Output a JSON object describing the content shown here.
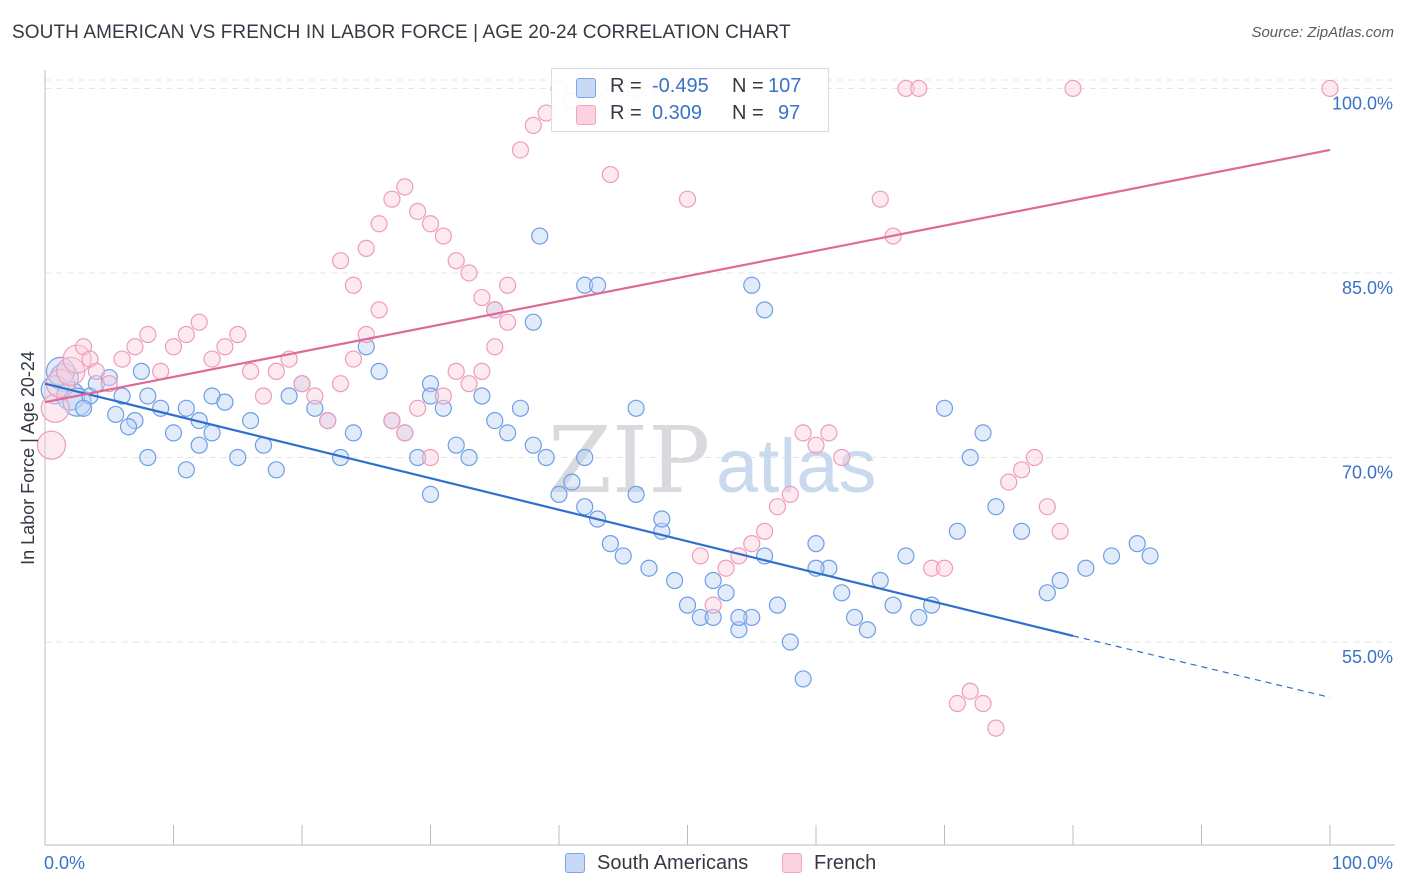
{
  "title": "SOUTH AMERICAN VS FRENCH IN LABOR FORCE | AGE 20-24 CORRELATION CHART",
  "source": "Source: ZipAtlas.com",
  "watermark": {
    "zip": "ZIP",
    "atlas": "atlas"
  },
  "legend_top": {
    "rows": [
      {
        "r_label": "R =",
        "r_value": "-0.495",
        "n_label": "N =",
        "n_value": "107",
        "color": "#7ba7e6"
      },
      {
        "r_label": "R =",
        "r_value": "0.309",
        "n_label": "N =",
        "n_value": "97",
        "color": "#f2a5bd"
      }
    ]
  },
  "legend_bottom": {
    "items": [
      {
        "label": "South Americans",
        "color": "#7ba7e6"
      },
      {
        "label": "French",
        "color": "#f2a5bd"
      }
    ]
  },
  "chart_data": {
    "type": "scatter",
    "title": "SOUTH AMERICAN VS FRENCH IN LABOR FORCE | AGE 20-24 CORRELATION CHART",
    "xlabel": "",
    "ylabel": "In Labor Force | Age 20-24",
    "xlim": [
      0,
      100
    ],
    "ylim": [
      38.5,
      101.5
    ],
    "x_tick_labels": [
      "0.0%",
      "100.0%"
    ],
    "y_ticks": [
      55,
      70,
      85,
      100
    ],
    "y_tick_labels": [
      "55.0%",
      "70.0%",
      "85.0%",
      "100.0%"
    ],
    "grid": true,
    "series": [
      {
        "name": "South Americans",
        "color": "#7ba7e6",
        "line_color": "#2f6fce",
        "trend": {
          "x0": 0,
          "y0": 76,
          "x1": 80,
          "y1": 55.5,
          "dash_to_x": 100,
          "dash_to_y": 50.5
        },
        "points": [
          [
            1.5,
            76.5
          ],
          [
            0.8,
            75.5
          ],
          [
            1.2,
            77
          ],
          [
            2,
            75
          ],
          [
            2.5,
            74.5
          ],
          [
            3.5,
            75
          ],
          [
            4,
            76
          ],
          [
            3,
            74
          ],
          [
            5,
            76.5
          ],
          [
            6,
            75
          ],
          [
            5.5,
            73.5
          ],
          [
            7,
            73
          ],
          [
            6.5,
            72.5
          ],
          [
            8,
            75
          ],
          [
            7.5,
            77
          ],
          [
            9,
            74
          ],
          [
            10,
            72
          ],
          [
            8,
            70
          ],
          [
            11,
            74
          ],
          [
            12,
            73
          ],
          [
            13,
            75
          ],
          [
            14,
            74.5
          ],
          [
            11,
            69
          ],
          [
            12,
            71
          ],
          [
            13,
            72
          ],
          [
            15,
            70
          ],
          [
            16,
            73
          ],
          [
            17,
            71
          ],
          [
            18,
            69
          ],
          [
            19,
            75
          ],
          [
            20,
            76
          ],
          [
            21,
            74
          ],
          [
            22,
            73
          ],
          [
            23,
            70
          ],
          [
            24,
            72
          ],
          [
            25,
            79
          ],
          [
            26,
            77
          ],
          [
            27,
            73
          ],
          [
            28,
            72
          ],
          [
            29,
            70
          ],
          [
            30,
            76
          ],
          [
            31,
            74
          ],
          [
            32,
            71
          ],
          [
            33,
            70
          ],
          [
            34,
            75
          ],
          [
            35,
            73
          ],
          [
            36,
            72
          ],
          [
            37,
            74
          ],
          [
            38,
            71
          ],
          [
            39,
            70
          ],
          [
            40,
            67
          ],
          [
            41,
            68
          ],
          [
            42,
            66
          ],
          [
            43,
            65
          ],
          [
            44,
            63
          ],
          [
            45,
            62
          ],
          [
            46,
            67
          ],
          [
            47,
            61
          ],
          [
            48,
            64
          ],
          [
            49,
            60
          ],
          [
            50,
            58
          ],
          [
            51,
            57
          ],
          [
            52,
            60
          ],
          [
            53,
            59
          ],
          [
            54,
            56
          ],
          [
            55,
            57
          ],
          [
            56,
            62
          ],
          [
            57,
            58
          ],
          [
            58,
            55
          ],
          [
            59,
            52
          ],
          [
            60,
            63
          ],
          [
            61,
            61
          ],
          [
            62,
            59
          ],
          [
            63,
            57
          ],
          [
            64,
            56
          ],
          [
            65,
            60
          ],
          [
            66,
            58
          ],
          [
            67,
            62
          ],
          [
            68,
            57
          ],
          [
            69,
            58
          ],
          [
            35,
            82
          ],
          [
            38,
            81
          ],
          [
            42,
            70
          ],
          [
            46,
            74
          ],
          [
            48,
            65
          ],
          [
            52,
            57
          ],
          [
            54,
            57
          ],
          [
            38.5,
            88
          ],
          [
            42,
            84
          ],
          [
            43,
            84
          ],
          [
            55,
            84
          ],
          [
            56,
            82
          ],
          [
            60,
            61
          ],
          [
            70,
            74
          ],
          [
            71,
            64
          ],
          [
            72,
            70
          ],
          [
            73,
            72
          ],
          [
            74,
            66
          ],
          [
            76,
            64
          ],
          [
            78,
            59
          ],
          [
            79,
            60
          ],
          [
            81,
            61
          ],
          [
            83,
            62
          ],
          [
            85,
            63
          ],
          [
            86,
            62
          ],
          [
            30,
            75
          ],
          [
            30,
            67
          ]
        ]
      },
      {
        "name": "French",
        "color": "#f2a5bd",
        "line_color": "#e06a97",
        "trend": {
          "x0": 0,
          "y0": 74.5,
          "x1": 100,
          "y1": 95
        },
        "points": [
          [
            0.5,
            71
          ],
          [
            0.8,
            74
          ],
          [
            1.2,
            76
          ],
          [
            2,
            77
          ],
          [
            2.5,
            78
          ],
          [
            3,
            79
          ],
          [
            3.5,
            78
          ],
          [
            4,
            77
          ],
          [
            5,
            76
          ],
          [
            6,
            78
          ],
          [
            7,
            79
          ],
          [
            8,
            80
          ],
          [
            9,
            77
          ],
          [
            10,
            79
          ],
          [
            11,
            80
          ],
          [
            12,
            81
          ],
          [
            13,
            78
          ],
          [
            14,
            79
          ],
          [
            15,
            80
          ],
          [
            16,
            77
          ],
          [
            17,
            75
          ],
          [
            18,
            77
          ],
          [
            19,
            78
          ],
          [
            20,
            76
          ],
          [
            21,
            75
          ],
          [
            22,
            73
          ],
          [
            23,
            76
          ],
          [
            24,
            78
          ],
          [
            25,
            80
          ],
          [
            26,
            82
          ],
          [
            27,
            73
          ],
          [
            28,
            72
          ],
          [
            29,
            74
          ],
          [
            30,
            70
          ],
          [
            31,
            75
          ],
          [
            32,
            77
          ],
          [
            33,
            76
          ],
          [
            34,
            77
          ],
          [
            35,
            79
          ],
          [
            36,
            81
          ],
          [
            23,
            86
          ],
          [
            24,
            84
          ],
          [
            25,
            87
          ],
          [
            26,
            89
          ],
          [
            27,
            91
          ],
          [
            28,
            92
          ],
          [
            29,
            90
          ],
          [
            30,
            89
          ],
          [
            31,
            88
          ],
          [
            32,
            86
          ],
          [
            33,
            85
          ],
          [
            34,
            83
          ],
          [
            35,
            82
          ],
          [
            36,
            84
          ],
          [
            37,
            95
          ],
          [
            38,
            97
          ],
          [
            39,
            98
          ],
          [
            40,
            100
          ],
          [
            41,
            99
          ],
          [
            42,
            100
          ],
          [
            43,
            100
          ],
          [
            44,
            93
          ],
          [
            45,
            100
          ],
          [
            46,
            100
          ],
          [
            47,
            100
          ],
          [
            48,
            100
          ],
          [
            49,
            100
          ],
          [
            50,
            91
          ],
          [
            51,
            62
          ],
          [
            52,
            58
          ],
          [
            53,
            61
          ],
          [
            54,
            62
          ],
          [
            55,
            63
          ],
          [
            56,
            64
          ],
          [
            57,
            66
          ],
          [
            58,
            67
          ],
          [
            59,
            72
          ],
          [
            60,
            71
          ],
          [
            61,
            72
          ],
          [
            62,
            70
          ],
          [
            65,
            91
          ],
          [
            66,
            88
          ],
          [
            67,
            100
          ],
          [
            68,
            100
          ],
          [
            69,
            61
          ],
          [
            70,
            61
          ],
          [
            71,
            50
          ],
          [
            72,
            51
          ],
          [
            73,
            50
          ],
          [
            74,
            48
          ],
          [
            75,
            68
          ],
          [
            76,
            69
          ],
          [
            77,
            70
          ],
          [
            78,
            66
          ],
          [
            79,
            64
          ],
          [
            80,
            100
          ],
          [
            100,
            100
          ]
        ]
      }
    ]
  }
}
